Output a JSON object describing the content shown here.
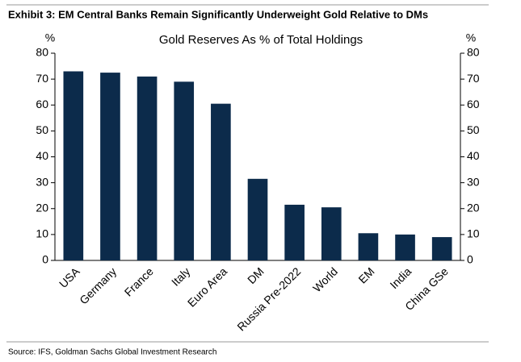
{
  "chart_data": {
    "type": "bar",
    "title": "Exhibit 3: EM Central Banks Remain Significantly Underweight Gold Relative to DMs",
    "subtitle": "Gold Reserves As % of Total Holdings",
    "ylabel": "%",
    "y2label": "%",
    "source": "Source: IFS, Goldman Sachs Global Investment Research",
    "categories": [
      "USA",
      "Germany",
      "France",
      "Italy",
      "Euro Area",
      "DM",
      "Russia Pre-2022",
      "World",
      "EM",
      "India",
      "China GSe"
    ],
    "values": [
      73,
      72.5,
      71,
      69,
      60.5,
      31.5,
      21.5,
      20.5,
      10.5,
      10,
      9
    ],
    "color": "#0c2b4b",
    "ylim": [
      0,
      80
    ],
    "yticks": [
      0,
      10,
      20,
      30,
      40,
      50,
      60,
      70,
      80
    ],
    "y2lim": [
      0,
      80
    ],
    "y2ticks": [
      0,
      10,
      20,
      30,
      40,
      50,
      60,
      70,
      80
    ]
  }
}
